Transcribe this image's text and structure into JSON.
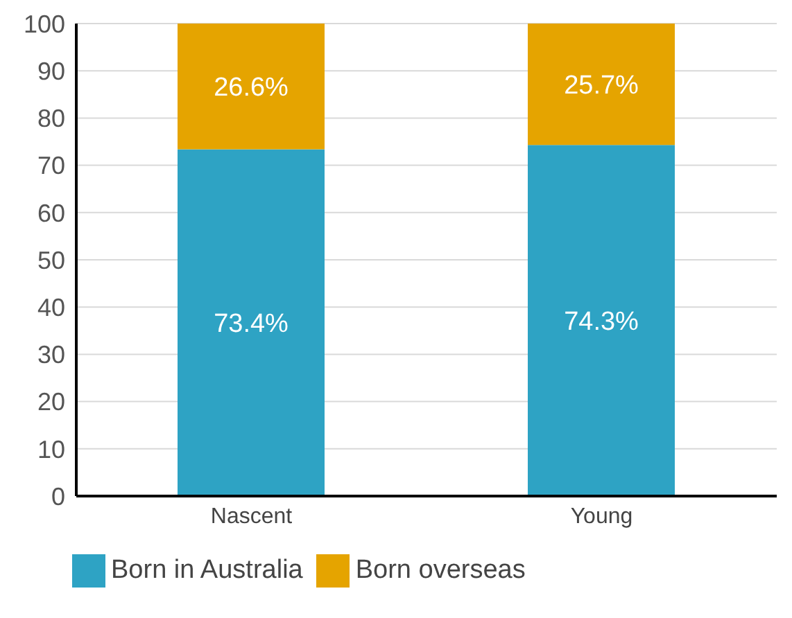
{
  "chart_data": {
    "type": "bar",
    "stacked": true,
    "categories": [
      "Nascent",
      "Young"
    ],
    "series": [
      {
        "name": "Born in Australia",
        "color": "#2ea3c4",
        "values": [
          73.4,
          74.3
        ],
        "value_labels": [
          "73.4%",
          "74.3%"
        ]
      },
      {
        "name": "Born overseas",
        "color": "#e5a400",
        "values": [
          26.6,
          25.7
        ],
        "value_labels": [
          "26.6%",
          "25.7%"
        ]
      }
    ],
    "ylim": [
      0,
      100
    ],
    "yticks": [
      0,
      10,
      20,
      30,
      40,
      50,
      60,
      70,
      80,
      90,
      100
    ],
    "grid": "y",
    "legend": "bottom left"
  }
}
